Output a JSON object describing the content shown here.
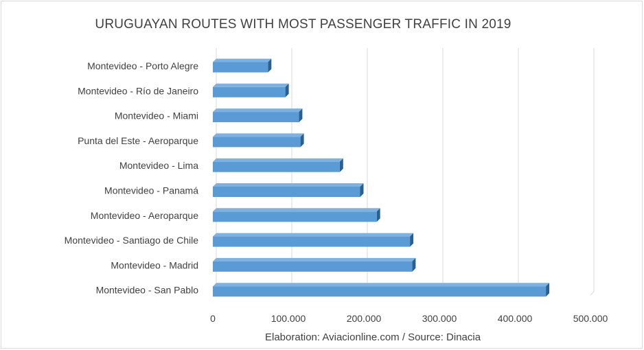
{
  "chart_data": {
    "type": "bar",
    "orientation": "horizontal",
    "style": "3d",
    "title": "URUGUAYAN ROUTES WITH MOST PASSENGER TRAFFIC IN 2019",
    "categories": [
      "Montevideo - Porto Alegre",
      "Montevideo - Río de Janeiro",
      "Montevideo - Miami",
      "Punta del Este - Aeroparque",
      "Montevideo - Lima",
      "Montevideo - Panamá",
      "Montevideo - Aeroparque",
      "Montevideo - Santiago de Chile",
      "Montevideo - Madrid",
      "Montevideo - San Pablo"
    ],
    "values": [
      73000,
      96000,
      114000,
      116000,
      168000,
      195000,
      217000,
      261000,
      264000,
      441000
    ],
    "xlim": [
      0,
      500000
    ],
    "x_ticks": [
      0,
      100000,
      200000,
      300000,
      400000,
      500000
    ],
    "x_tick_labels": [
      "0",
      "100.000",
      "200.000",
      "300.000",
      "400.000",
      "500.000"
    ],
    "grid": true,
    "bar_color": "#5b9bd5",
    "bar_top_color": "#7fb1e0",
    "bar_side_color": "#2e5f8a",
    "xlabel": "",
    "ylabel": ""
  },
  "source_note": "Elaboration: Aviacionline.com / Source: Dinacia"
}
